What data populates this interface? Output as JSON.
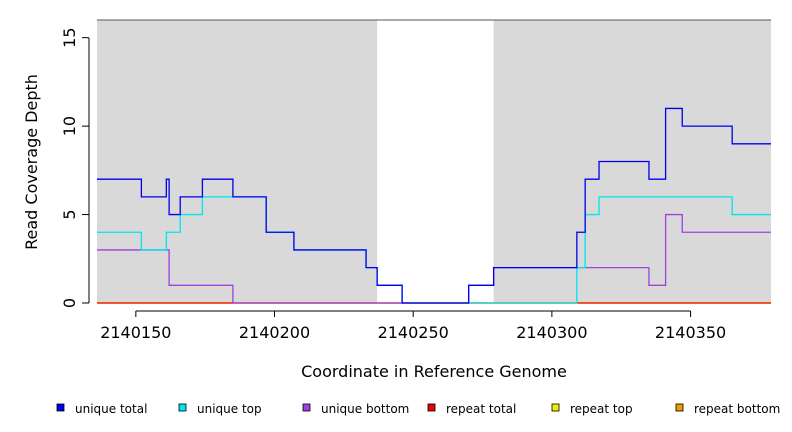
{
  "chart_data": {
    "type": "line",
    "step": true,
    "xlabel": "Coordinate in Reference Genome",
    "ylabel": "Read Coverage Depth",
    "xlim": [
      2140136,
      2140379
    ],
    "ylim": [
      0,
      16
    ],
    "x_ticks": [
      2140150,
      2140200,
      2140250,
      2140300,
      2140350
    ],
    "y_ticks": [
      0,
      5,
      10,
      15
    ],
    "background_color": "#d9d9d9",
    "unshaded_region": [
      2140237,
      2140279
    ],
    "series": [
      {
        "name": "unique total",
        "color": "#0000ee",
        "points": [
          [
            2140136,
            7
          ],
          [
            2140152,
            6
          ],
          [
            2140161,
            7
          ],
          [
            2140162,
            5
          ],
          [
            2140166,
            6
          ],
          [
            2140174,
            7
          ],
          [
            2140185,
            6
          ],
          [
            2140197,
            4
          ],
          [
            2140207,
            3
          ],
          [
            2140233,
            2
          ],
          [
            2140237,
            1
          ],
          [
            2140246,
            0
          ],
          [
            2140270,
            1
          ],
          [
            2140279,
            2
          ],
          [
            2140309,
            4
          ],
          [
            2140312,
            7
          ],
          [
            2140317,
            8
          ],
          [
            2140335,
            7
          ],
          [
            2140341,
            11
          ],
          [
            2140347,
            10
          ],
          [
            2140365,
            9
          ],
          [
            2140379,
            9
          ]
        ]
      },
      {
        "name": "unique top",
        "color": "#00e5ee",
        "points": [
          [
            2140136,
            4
          ],
          [
            2140152,
            3
          ],
          [
            2140161,
            4
          ],
          [
            2140166,
            5
          ],
          [
            2140174,
            6
          ],
          [
            2140197,
            4
          ],
          [
            2140207,
            3
          ],
          [
            2140233,
            2
          ],
          [
            2140237,
            1
          ],
          [
            2140246,
            0
          ],
          [
            2140309,
            2
          ],
          [
            2140312,
            5
          ],
          [
            2140317,
            6
          ],
          [
            2140365,
            5
          ],
          [
            2140379,
            5
          ]
        ]
      },
      {
        "name": "unique bottom",
        "color": "#a040e0",
        "points": [
          [
            2140136,
            3
          ],
          [
            2140162,
            1
          ],
          [
            2140185,
            0
          ],
          [
            2140270,
            1
          ],
          [
            2140279,
            2
          ],
          [
            2140335,
            1
          ],
          [
            2140341,
            5
          ],
          [
            2140347,
            4
          ],
          [
            2140379,
            4
          ]
        ]
      },
      {
        "name": "repeat total",
        "color": "#ee0000",
        "points": [
          [
            2140136,
            0
          ],
          [
            2140379,
            0
          ]
        ]
      },
      {
        "name": "repeat top",
        "color": "#eeee00",
        "points": [
          [
            2140136,
            0
          ],
          [
            2140379,
            0
          ]
        ]
      },
      {
        "name": "repeat bottom",
        "color": "#ee9a00",
        "points": [
          [
            2140136,
            0
          ],
          [
            2140379,
            0
          ]
        ]
      }
    ],
    "legend_position": "bottom"
  }
}
